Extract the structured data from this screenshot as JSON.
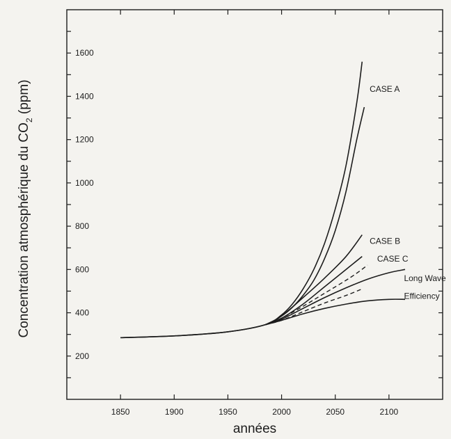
{
  "chart_data": {
    "type": "line",
    "title": "",
    "xlabel": "années",
    "ylabel": "Concentration atmosphérique du CO",
    "ylabel_subscript": "2",
    "ylabel_unit": " (ppm)",
    "xlim": [
      1800,
      2150
    ],
    "ylim": [
      0,
      1800
    ],
    "x_ticks": [
      1850,
      1900,
      1950,
      2000,
      2050,
      2100
    ],
    "x_tick_labels": [
      "1850",
      "1900",
      "1950",
      "2000",
      "2050",
      "2100"
    ],
    "y_ticks": [
      200,
      400,
      600,
      800,
      1000,
      1200,
      1400,
      1600
    ],
    "y_tick_labels": [
      "200",
      "400",
      "600",
      "800",
      "1000",
      "1200",
      "1400",
      "1600"
    ],
    "grid": false,
    "annotations": [
      {
        "text": "CASE A",
        "x": 2082,
        "y": 1420
      },
      {
        "text": "CASE B",
        "x": 2082,
        "y": 718
      },
      {
        "text": "CASE C",
        "x": 2089,
        "y": 637
      },
      {
        "text": "Long Wave",
        "x": 2114,
        "y": 547
      },
      {
        "text": "Efficiency",
        "x": 2114,
        "y": 464
      }
    ],
    "series": [
      {
        "dashed": false,
        "x": [
          1850,
          1900,
          1950,
          1985,
          2000,
          2010,
          2020,
          2030,
          2040,
          2050,
          2060,
          2070,
          2075
        ],
        "y": [
          285,
          293,
          312,
          345,
          390,
          440,
          510,
          600,
          720,
          880,
          1080,
          1370,
          1560
        ]
      },
      {
        "dashed": false,
        "x": [
          1850,
          1900,
          1950,
          1985,
          2000,
          2010,
          2020,
          2030,
          2040,
          2050,
          2060,
          2070,
          2077
        ],
        "y": [
          285,
          293,
          312,
          345,
          385,
          425,
          480,
          550,
          650,
          780,
          960,
          1200,
          1350
        ]
      },
      {
        "dashed": false,
        "x": [
          1985,
          2000,
          2020,
          2040,
          2060,
          2075
        ],
        "y": [
          345,
          385,
          470,
          560,
          660,
          760
        ]
      },
      {
        "dashed": false,
        "x": [
          1985,
          2000,
          2020,
          2040,
          2060,
          2075
        ],
        "y": [
          345,
          375,
          440,
          520,
          600,
          660
        ]
      },
      {
        "dashed": true,
        "x": [
          1985,
          2000,
          2020,
          2040,
          2060,
          2072,
          2080
        ],
        "y": [
          345,
          375,
          430,
          490,
          550,
          590,
          620
        ]
      },
      {
        "dashed": false,
        "x": [
          1985,
          2000,
          2020,
          2040,
          2060,
          2080,
          2100,
          2115
        ],
        "y": [
          345,
          370,
          420,
          470,
          515,
          555,
          585,
          600
        ]
      },
      {
        "dashed": true,
        "x": [
          1985,
          2000,
          2020,
          2040,
          2060,
          2075
        ],
        "y": [
          345,
          365,
          405,
          445,
          480,
          510
        ]
      },
      {
        "dashed": false,
        "x": [
          1985,
          2000,
          2020,
          2040,
          2060,
          2080,
          2100,
          2115
        ],
        "y": [
          345,
          365,
          395,
          420,
          440,
          455,
          462,
          462
        ]
      }
    ]
  }
}
